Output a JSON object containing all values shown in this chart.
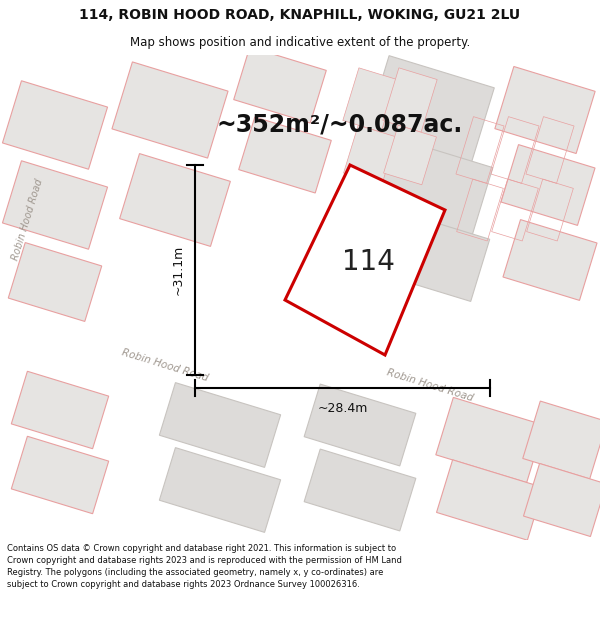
{
  "title_line1": "114, ROBIN HOOD ROAD, KNAPHILL, WOKING, GU21 2LU",
  "title_line2": "Map shows position and indicative extent of the property.",
  "area_text": "~352m²/~0.087ac.",
  "label_114": "114",
  "dim_height": "~31.1m",
  "dim_width": "~28.4m",
  "footer_text": "Contains OS data © Crown copyright and database right 2021. This information is subject to Crown copyright and database rights 2023 and is reproduced with the permission of HM Land Registry. The polygons (including the associated geometry, namely x, y co-ordinates) are subject to Crown copyright and database rights 2023 Ordnance Survey 100026316.",
  "map_bg": "#f5f3f1",
  "bld_fill": "#e0dedd",
  "bld_edge_pink": "#e8a0a0",
  "bld_edge_gray": "#c0bcb8",
  "highlight_edge": "#cc0000",
  "road_color": "#b8b0a8",
  "road_text_color": "#a09890",
  "title_fontsize": 10,
  "subtitle_fontsize": 8.5,
  "area_fontsize": 17,
  "label_fontsize": 20,
  "dim_fontsize": 9,
  "footer_fontsize": 6.0
}
